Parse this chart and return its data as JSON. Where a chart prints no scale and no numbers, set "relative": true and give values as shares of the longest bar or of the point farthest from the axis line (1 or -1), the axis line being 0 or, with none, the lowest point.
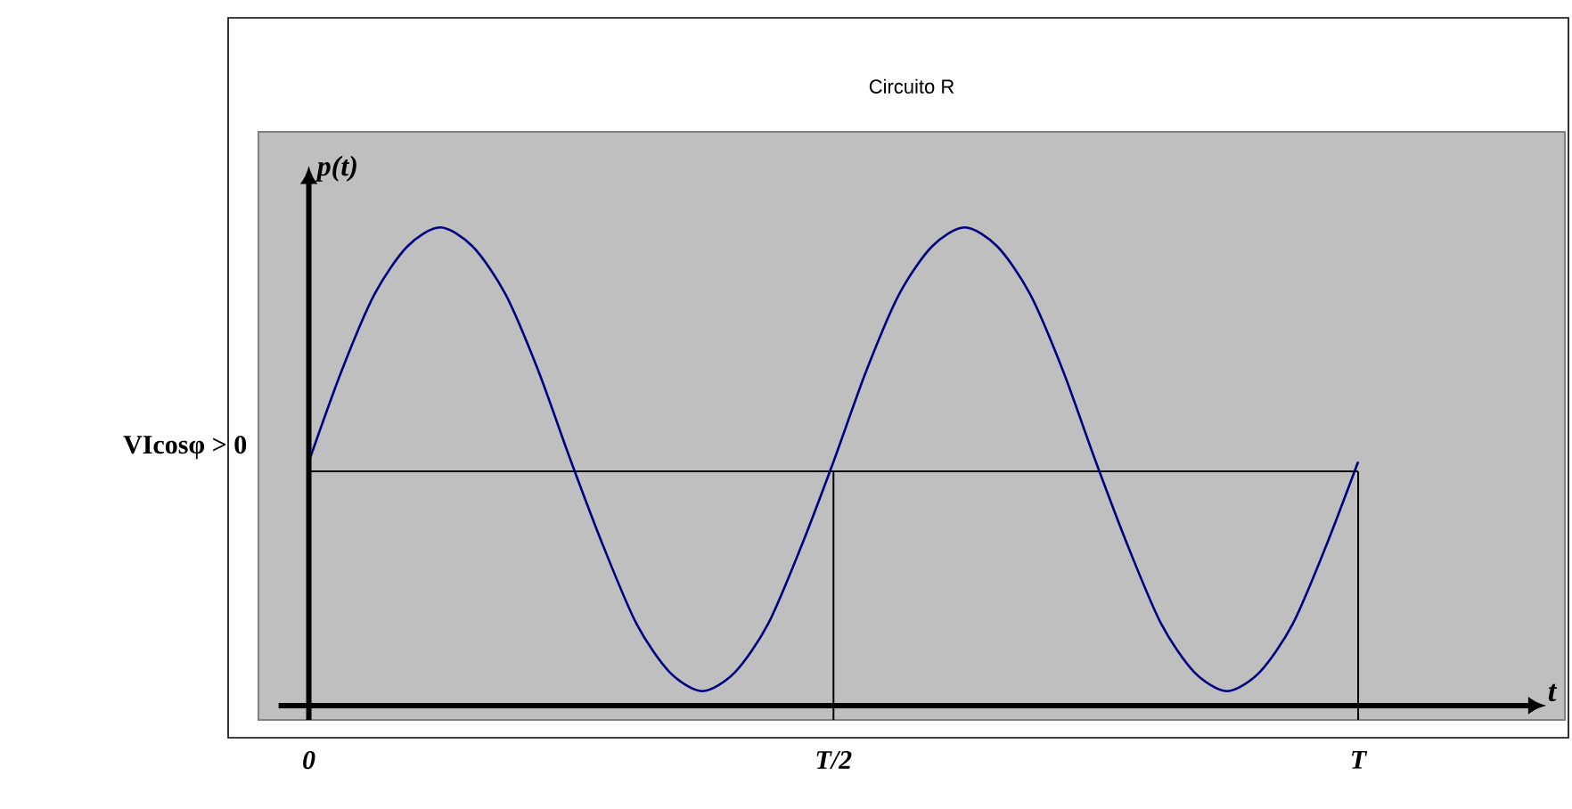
{
  "chart_data": {
    "type": "line",
    "title": "Circuito R",
    "ylabel": "p(t)",
    "annotations": [
      "t"
    ],
    "relative": true,
    "categories": [
      "0",
      null,
      null,
      null,
      null,
      null,
      null,
      null,
      null,
      null,
      null,
      null,
      null,
      null,
      null,
      null,
      "T/2",
      null,
      null,
      null,
      null,
      null,
      null,
      null,
      null,
      null,
      null,
      null,
      null,
      null,
      null,
      null,
      "T"
    ],
    "series": [
      {
        "color": "#000080",
        "values": [
          0.51,
          0.7,
          0.86,
          0.96,
          1,
          0.96,
          0.86,
          0.7,
          0.51,
          0.33,
          0.17,
          0.07,
          0.03,
          0.07,
          0.17,
          0.33,
          0.51,
          0.7,
          0.86,
          0.96,
          1,
          0.96,
          0.86,
          0.7,
          0.51,
          0.33,
          0.17,
          0.07,
          0.03,
          0.07,
          0.17,
          0.33,
          0.51
        ]
      }
    ],
    "ref_lines": [
      {
        "axis": "y",
        "value": 0.49,
        "label": "VIcosφ > 0",
        "color": "#000000"
      },
      {
        "axis": "x",
        "value": "T/2",
        "color": "#000000"
      },
      {
        "axis": "x",
        "value": "T",
        "color": "#000000"
      }
    ],
    "marker": "none",
    "line_style": "solid",
    "grid": false
  }
}
